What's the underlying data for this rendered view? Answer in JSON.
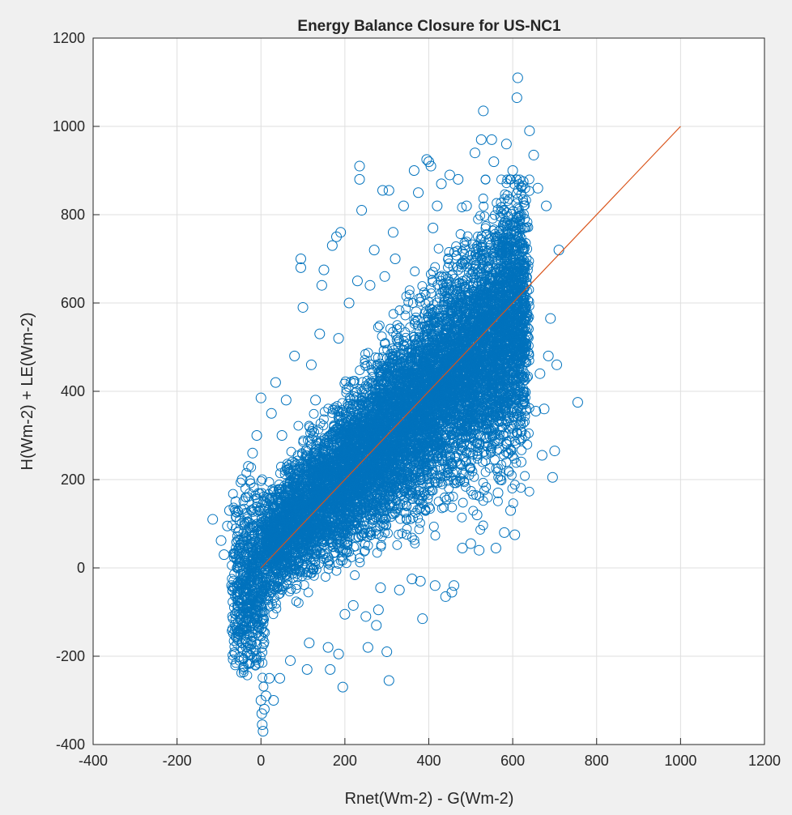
{
  "chart_data": {
    "type": "scatter",
    "title": "Energy Balance Closure for US-NC1",
    "xlabel": "Rnet(Wm-2) - G(Wm-2)",
    "ylabel": "H(Wm-2) + LE(Wm-2)",
    "xlim": [
      -400,
      1200
    ],
    "ylim": [
      -400,
      1200
    ],
    "xticks": [
      -400,
      -200,
      0,
      200,
      400,
      600,
      800,
      1000,
      1200
    ],
    "yticks": [
      -400,
      -200,
      0,
      200,
      400,
      600,
      800,
      1000,
      1200
    ],
    "xtick_labels": [
      "-400",
      "-200",
      "0",
      "200",
      "400",
      "600",
      "800",
      "1000",
      "1200"
    ],
    "ytick_labels": [
      "-400",
      "-200",
      "0",
      "200",
      "400",
      "600",
      "800",
      "1000",
      "1200"
    ],
    "grid": true,
    "legend": "none",
    "marker": "open-circle",
    "series": [
      {
        "color": "#0072bd",
        "points": [
          [
            -115,
            110
          ],
          [
            -95,
            62
          ],
          [
            -88,
            30
          ],
          [
            -80,
            95
          ],
          [
            -75,
            130
          ],
          [
            -70,
            -40
          ],
          [
            -60,
            150
          ],
          [
            -55,
            -90
          ],
          [
            -45,
            200
          ],
          [
            -40,
            -140
          ],
          [
            -30,
            230
          ],
          [
            -25,
            -175
          ],
          [
            -20,
            260
          ],
          [
            -10,
            300
          ],
          [
            -5,
            -215
          ],
          [
            0,
            -300
          ],
          [
            0,
            385
          ],
          [
            2,
            -330
          ],
          [
            3,
            -355
          ],
          [
            5,
            -370
          ],
          [
            8,
            -320
          ],
          [
            12,
            -290
          ],
          [
            20,
            -250
          ],
          [
            25,
            350
          ],
          [
            30,
            -300
          ],
          [
            35,
            420
          ],
          [
            45,
            -250
          ],
          [
            50,
            300
          ],
          [
            60,
            380
          ],
          [
            70,
            -210
          ],
          [
            75,
            240
          ],
          [
            80,
            480
          ],
          [
            95,
            700
          ],
          [
            95,
            680
          ],
          [
            100,
            590
          ],
          [
            110,
            -230
          ],
          [
            115,
            -170
          ],
          [
            120,
            460
          ],
          [
            130,
            380
          ],
          [
            140,
            530
          ],
          [
            145,
            640
          ],
          [
            150,
            675
          ],
          [
            160,
            -180
          ],
          [
            165,
            -230
          ],
          [
            170,
            730
          ],
          [
            180,
            750
          ],
          [
            185,
            -195
          ],
          [
            185,
            520
          ],
          [
            190,
            760
          ],
          [
            195,
            -270
          ],
          [
            200,
            -105
          ],
          [
            210,
            600
          ],
          [
            220,
            -85
          ],
          [
            225,
            330
          ],
          [
            230,
            650
          ],
          [
            235,
            880
          ],
          [
            235,
            910
          ],
          [
            240,
            810
          ],
          [
            250,
            -110
          ],
          [
            255,
            -180
          ],
          [
            260,
            640
          ],
          [
            270,
            720
          ],
          [
            275,
            -130
          ],
          [
            280,
            -95
          ],
          [
            285,
            -45
          ],
          [
            290,
            855
          ],
          [
            295,
            660
          ],
          [
            300,
            -190
          ],
          [
            305,
            855
          ],
          [
            305,
            -255
          ],
          [
            315,
            760
          ],
          [
            320,
            700
          ],
          [
            330,
            -50
          ],
          [
            340,
            820
          ],
          [
            345,
            300
          ],
          [
            360,
            -25
          ],
          [
            365,
            900
          ],
          [
            370,
            580
          ],
          [
            375,
            850
          ],
          [
            380,
            -30
          ],
          [
            385,
            -115
          ],
          [
            395,
            925
          ],
          [
            400,
            920
          ],
          [
            405,
            910
          ],
          [
            410,
            770
          ],
          [
            415,
            -40
          ],
          [
            420,
            820
          ],
          [
            430,
            870
          ],
          [
            440,
            -65
          ],
          [
            450,
            890
          ],
          [
            455,
            -55
          ],
          [
            460,
            -40
          ],
          [
            470,
            880
          ],
          [
            480,
            45
          ],
          [
            490,
            820
          ],
          [
            500,
            55
          ],
          [
            510,
            940
          ],
          [
            515,
            120
          ],
          [
            520,
            40
          ],
          [
            525,
            970
          ],
          [
            530,
            1035
          ],
          [
            540,
            160
          ],
          [
            545,
            500
          ],
          [
            550,
            970
          ],
          [
            555,
            920
          ],
          [
            560,
            45
          ],
          [
            565,
            170
          ],
          [
            570,
            200
          ],
          [
            580,
            80
          ],
          [
            585,
            960
          ],
          [
            590,
            260
          ],
          [
            595,
            130
          ],
          [
            600,
            900
          ],
          [
            605,
            75
          ],
          [
            610,
            1065
          ],
          [
            612,
            1110
          ],
          [
            620,
            240
          ],
          [
            625,
            875
          ],
          [
            630,
            300
          ],
          [
            640,
            990
          ],
          [
            650,
            935
          ],
          [
            655,
            355
          ],
          [
            660,
            860
          ],
          [
            665,
            440
          ],
          [
            670,
            255
          ],
          [
            675,
            360
          ],
          [
            680,
            820
          ],
          [
            685,
            480
          ],
          [
            690,
            565
          ],
          [
            695,
            205
          ],
          [
            700,
            265
          ],
          [
            705,
            460
          ],
          [
            710,
            720
          ],
          [
            755,
            375
          ]
        ]
      }
    ],
    "reference_line": {
      "color": "#d95319",
      "x": [
        0,
        1000
      ],
      "y": [
        0,
        1000
      ]
    }
  }
}
